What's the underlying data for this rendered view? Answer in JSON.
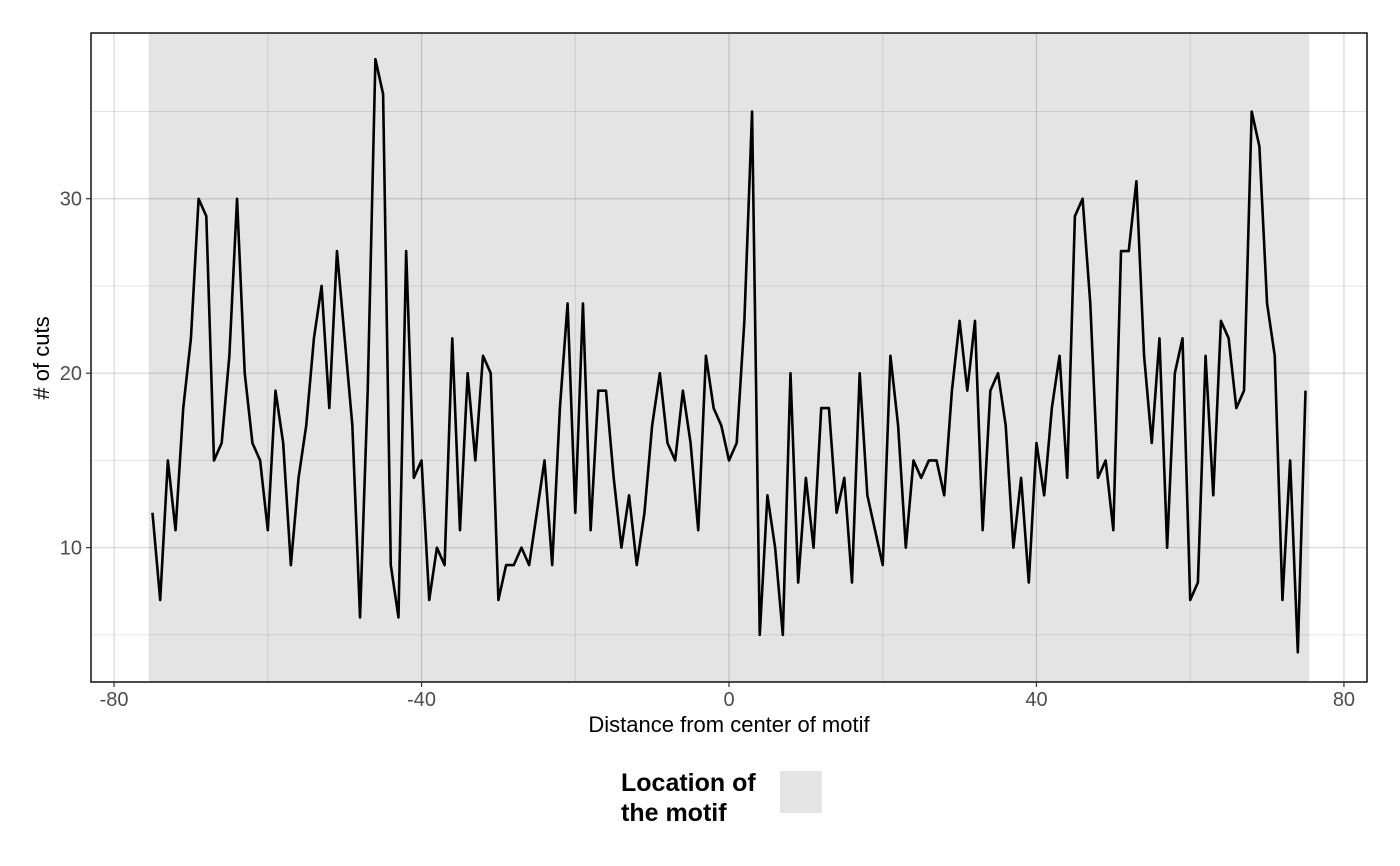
{
  "chart_data": {
    "type": "line",
    "title": "",
    "xlabel": "Distance from center of motif",
    "ylabel": "# of cuts",
    "xlim": [
      -83,
      83
    ],
    "ylim": [
      2.3,
      39.5
    ],
    "x_ticks": [
      -80,
      -40,
      0,
      40,
      80
    ],
    "x_tick_labels": [
      "-80",
      "-40",
      "0",
      "40",
      "80"
    ],
    "y_ticks": [
      10,
      20,
      30
    ],
    "y_tick_labels": [
      "10",
      "20",
      "30"
    ],
    "x_minor_grid": [
      -60,
      -20,
      20,
      60
    ],
    "y_minor_grid": [
      5,
      15,
      25,
      35
    ],
    "grid": true,
    "line_color": "#000000",
    "motif_region": {
      "xmin": -75.5,
      "xmax": 75.5,
      "color": "#e4e4e4"
    },
    "legend": {
      "title_lines": [
        "Location of",
        "the motif"
      ],
      "position": "bottom",
      "swatch_color": "#e4e4e4"
    },
    "series": [
      {
        "x": [
          -75,
          -74,
          -73,
          -72,
          -71,
          -70,
          -69,
          -68,
          -67,
          -66,
          -65,
          -64,
          -63,
          -62,
          -61,
          -60,
          -59,
          -58,
          -57,
          -56,
          -55,
          -54,
          -53,
          -52,
          -51,
          -50,
          -49,
          -48,
          -47,
          -46,
          -45,
          -44,
          -43,
          -42,
          -41,
          -40,
          -39,
          -38,
          -37,
          -36,
          -35,
          -34,
          -33,
          -32,
          -31,
          -30,
          -29,
          -28,
          -27,
          -26,
          -25,
          -24,
          -23,
          -22,
          -21,
          -20,
          -19,
          -18,
          -17,
          -16,
          -15,
          -14,
          -13,
          -12,
          -11,
          -10,
          -9,
          -8,
          -7,
          -6,
          -5,
          -4,
          -3,
          -2,
          -1,
          0,
          1,
          2,
          3,
          4,
          5,
          6,
          7,
          8,
          9,
          10,
          11,
          12,
          13,
          14,
          15,
          16,
          17,
          18,
          19,
          20,
          21,
          22,
          23,
          24,
          25,
          26,
          27,
          28,
          29,
          30,
          31,
          32,
          33,
          34,
          35,
          36,
          37,
          38,
          39,
          40,
          41,
          42,
          43,
          44,
          45,
          46,
          47,
          48,
          49,
          50,
          51,
          52,
          53,
          54,
          55,
          56,
          57,
          58,
          59,
          60,
          61,
          62,
          63,
          64,
          65,
          66,
          67,
          68,
          69,
          70,
          71,
          72,
          73,
          74,
          75
        ],
        "y": [
          12,
          7,
          15,
          11,
          18,
          22,
          30,
          29,
          15,
          16,
          21,
          30,
          20,
          16,
          15,
          11,
          19,
          16,
          9,
          14,
          17,
          22,
          25,
          18,
          27,
          22,
          17,
          6,
          19,
          38,
          36,
          9,
          6,
          27,
          14,
          15,
          7,
          10,
          9,
          22,
          11,
          20,
          15,
          21,
          20,
          7,
          9,
          9,
          10,
          9,
          12,
          15,
          9,
          18,
          24,
          12,
          24,
          11,
          19,
          19,
          14,
          10,
          13,
          9,
          12,
          17,
          20,
          16,
          15,
          19,
          16,
          11,
          21,
          18,
          17,
          15,
          16,
          23,
          35,
          5,
          13,
          10,
          5,
          20,
          8,
          14,
          10,
          18,
          18,
          12,
          14,
          8,
          20,
          13,
          11,
          9,
          21,
          17,
          10,
          15,
          14,
          15,
          15,
          13,
          19,
          23,
          19,
          23,
          11,
          19,
          20,
          17,
          10,
          14,
          8,
          16,
          13,
          18,
          21,
          14,
          29,
          30,
          24,
          14,
          15,
          11,
          27,
          27,
          31,
          21,
          16,
          22,
          10,
          20,
          22,
          7,
          8,
          21,
          13,
          23,
          22,
          18,
          19,
          35,
          33,
          24,
          21,
          7,
          15,
          4,
          19
        ]
      }
    ]
  }
}
